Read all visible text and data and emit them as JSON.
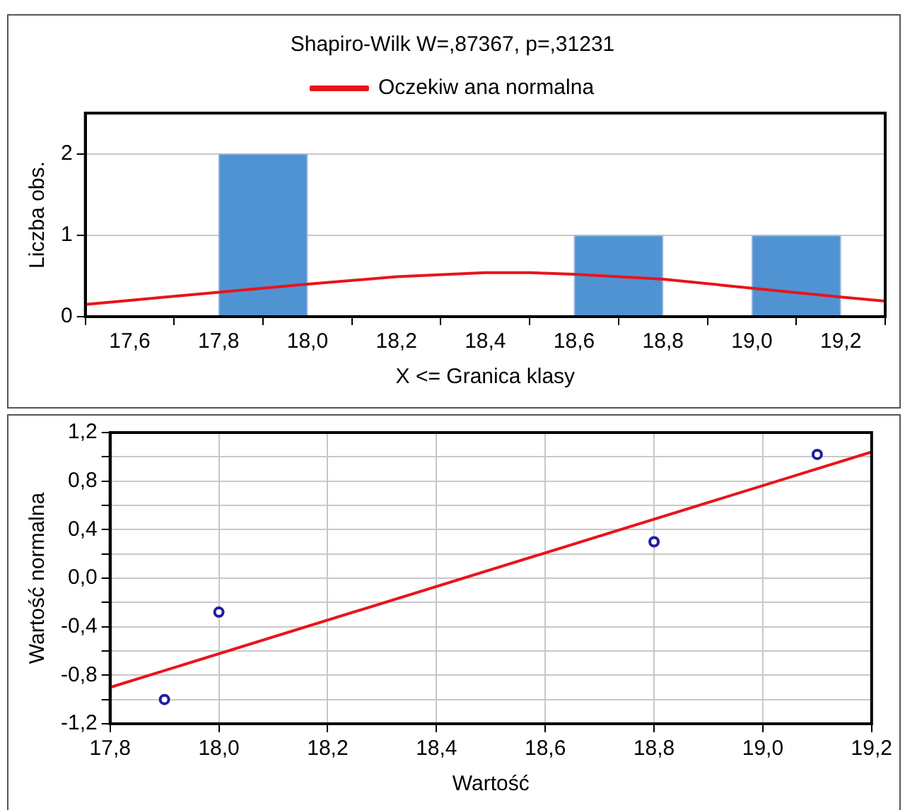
{
  "chart_data": [
    {
      "type": "histogram",
      "title": "Shapiro-Wilk W=,87367, p=,31231",
      "xlabel": "X <= Granica klasy",
      "ylabel": "Liczba obs.",
      "bins": [
        17.8,
        18.0,
        18.2,
        18.4,
        18.6,
        18.8,
        19.0,
        19.2
      ],
      "values": [
        2,
        0,
        0,
        0,
        1,
        0,
        1
      ],
      "color": "#4f93d3",
      "xlim": [
        17.5,
        19.3
      ],
      "xticks": [
        {
          "value": 17.6,
          "label": "17,6"
        },
        {
          "value": 17.8,
          "label": "17,8"
        },
        {
          "value": 18.0,
          "label": "18,0"
        },
        {
          "value": 18.2,
          "label": "18,2"
        },
        {
          "value": 18.4,
          "label": "18,4"
        },
        {
          "value": 18.6,
          "label": "18,6"
        },
        {
          "value": 18.8,
          "label": "18,8"
        },
        {
          "value": 19.0,
          "label": "19,0"
        },
        {
          "value": 19.2,
          "label": "19,2"
        }
      ],
      "ylim": [
        0,
        2.5
      ],
      "yticks": [
        0,
        1,
        2
      ],
      "grid": "y",
      "legend": "top",
      "marker": "none",
      "series": [
        {
          "name": "Oczekiw ana normalna",
          "type": "line",
          "color": "#e8141b",
          "x": [
            17.5,
            17.6,
            17.8,
            18.0,
            18.2,
            18.4,
            18.5,
            18.6,
            18.8,
            19.0,
            19.2,
            19.3
          ],
          "values": [
            0.15,
            0.2,
            0.3,
            0.4,
            0.49,
            0.54,
            0.54,
            0.52,
            0.46,
            0.35,
            0.24,
            0.19
          ]
        }
      ]
    },
    {
      "type": "scatter",
      "xlabel": "Wartość",
      "ylabel": "Wartość normalna",
      "xlim": [
        17.8,
        19.2
      ],
      "xticks": [
        {
          "value": 17.8,
          "label": "17,8"
        },
        {
          "value": 18.0,
          "label": "18,0"
        },
        {
          "value": 18.2,
          "label": "18,2"
        },
        {
          "value": 18.4,
          "label": "18,4"
        },
        {
          "value": 18.6,
          "label": "18,6"
        },
        {
          "value": 18.8,
          "label": "18,8"
        },
        {
          "value": 19.0,
          "label": "19,0"
        },
        {
          "value": 19.2,
          "label": "19,2"
        }
      ],
      "ylim": [
        -1.2,
        1.2
      ],
      "yticks": [
        {
          "value": -1.2,
          "label": "-1,2"
        },
        {
          "value": -1.0,
          "label": null
        },
        {
          "value": -0.8,
          "label": "-0,8"
        },
        {
          "value": -0.6,
          "label": null
        },
        {
          "value": -0.4,
          "label": "-0,4"
        },
        {
          "value": -0.2,
          "label": null
        },
        {
          "value": 0.0,
          "label": "0,0"
        },
        {
          "value": 0.2,
          "label": null
        },
        {
          "value": 0.4,
          "label": "0,4"
        },
        {
          "value": 0.6,
          "label": null
        },
        {
          "value": 0.8,
          "label": "0,8"
        },
        {
          "value": 1.0,
          "label": null
        },
        {
          "value": 1.2,
          "label": "1,2"
        }
      ],
      "grid": true,
      "legend": false,
      "marker": "circle",
      "series": [
        {
          "type": "scatter",
          "color": "#1f1f9f",
          "x": [
            17.9,
            18.0,
            18.8,
            19.1
          ],
          "values": [
            -1.0,
            -0.28,
            0.3,
            1.02
          ]
        },
        {
          "type": "line",
          "marker": "none",
          "color": "#e8141b",
          "x": [
            17.8,
            19.2
          ],
          "values": [
            -0.9,
            1.04
          ]
        }
      ]
    }
  ]
}
